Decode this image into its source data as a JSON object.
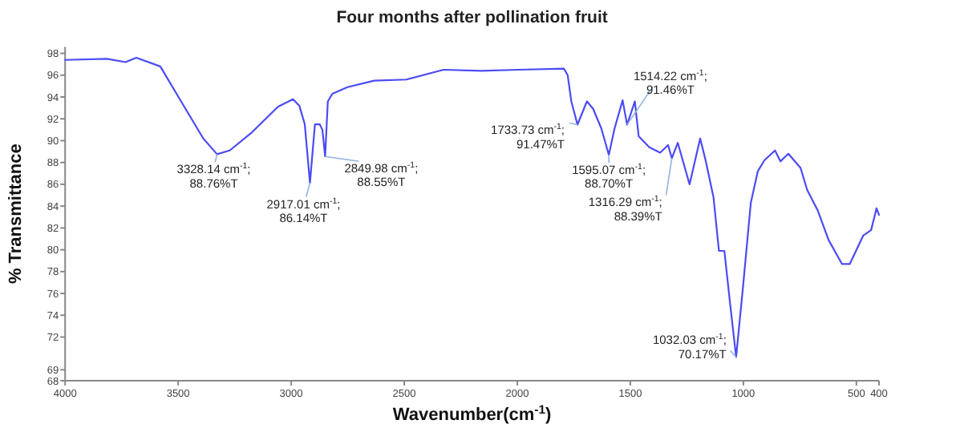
{
  "chart_data": {
    "type": "line",
    "title": "Four months after pollination fruit",
    "xlabel": "Wavenumber(cm$^{-1}$)",
    "ylabel": "% Transmittance",
    "xlim": [
      4000,
      400
    ],
    "xticks": [
      4000,
      3500,
      3000,
      2500,
      2000,
      1500,
      1000,
      500,
      400
    ],
    "ylim": [
      68,
      98.6
    ],
    "yticks": [
      98,
      96,
      94,
      92,
      90,
      88,
      86,
      84,
      82,
      80,
      78,
      76,
      74,
      72,
      69,
      68
    ],
    "grid": false,
    "series": [
      {
        "color": "#4b4bf5",
        "x": [
          4000,
          3815,
          3733,
          3685,
          3579,
          3487,
          3389,
          3328.14,
          3272,
          3177,
          3059,
          2992,
          2964,
          2940,
          2917.01,
          2895,
          2874,
          2862,
          2849.98,
          2838,
          2818,
          2751,
          2633,
          2491,
          2326,
          2160,
          1995,
          1794,
          1777,
          1761,
          1733.73,
          1692,
          1664,
          1628,
          1595.07,
          1570,
          1534,
          1514.22,
          1480,
          1463,
          1416,
          1368,
          1333,
          1316.29,
          1290,
          1238,
          1191,
          1167,
          1132,
          1108,
          1084,
          1061,
          1032.03,
          1002,
          967,
          936,
          907,
          860,
          836,
          801,
          747,
          718,
          671,
          623,
          564,
          529,
          470,
          435,
          411,
          400
        ],
        "values": [
          97.4,
          97.5,
          97.2,
          97.6,
          96.8,
          93.6,
          90.2,
          88.76,
          89.1,
          90.7,
          93.1,
          93.8,
          93.2,
          91.5,
          86.14,
          91.5,
          91.5,
          91.0,
          88.55,
          93.6,
          94.3,
          94.9,
          95.5,
          95.6,
          96.5,
          96.4,
          96.5,
          96.6,
          96.0,
          93.6,
          91.47,
          93.6,
          92.9,
          91.1,
          88.7,
          91.1,
          93.7,
          91.46,
          93.6,
          90.4,
          89.4,
          88.9,
          89.6,
          88.39,
          89.8,
          86.0,
          90.2,
          88.2,
          84.8,
          79.9,
          79.9,
          75.5,
          70.17,
          76.5,
          84.3,
          87.2,
          88.2,
          89.1,
          88.1,
          88.8,
          87.5,
          85.5,
          83.6,
          80.9,
          78.7,
          78.7,
          81.3,
          81.8,
          83.8,
          83.2
        ]
      }
    ],
    "annotations": [
      {
        "text": "3328.14 cm$^{-1}$; 88.76%T",
        "x": 3328.14,
        "y": 88.76
      },
      {
        "text": "2917.01 cm$^{-1}$; 86.14%T",
        "x": 2917.01,
        "y": 86.14
      },
      {
        "text": "2849.98 cm$^{-1}$; 88.55%T",
        "x": 2849.98,
        "y": 88.55
      },
      {
        "text": "1733.73 cm$^{-1}$; 91.47%T",
        "x": 1733.73,
        "y": 91.47
      },
      {
        "text": "1595.07 cm$^{-1}$; 88.70%T",
        "x": 1595.07,
        "y": 88.7
      },
      {
        "text": "1514.22 cm$^{-1}$; 91.46%T",
        "x": 1514.22,
        "y": 91.46
      },
      {
        "text": "1316.29 cm$^{-1}$; 88.39%T",
        "x": 1316.29,
        "y": 88.39
      },
      {
        "text": "1032.03 cm$^{-1}$; 70.17%T",
        "x": 1032.03,
        "y": 70.17
      }
    ]
  }
}
